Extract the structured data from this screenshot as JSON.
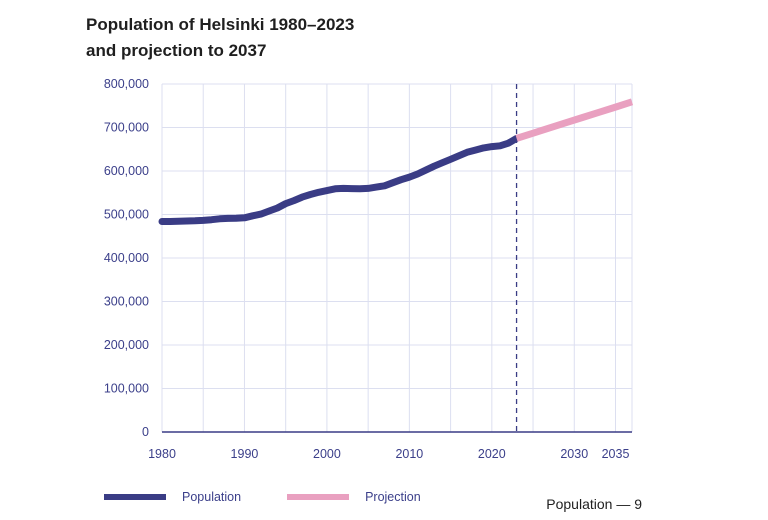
{
  "title_line1": "Population of Helsinki 1980–2023",
  "title_line2": "and projection to 2037",
  "footer": "Population — 9",
  "colors": {
    "population": "#3a3c85",
    "projection": "#e9a0c0",
    "grid": "#dcdff0",
    "axis_text": "#3b3f8a",
    "divider": "#3a3c85",
    "baseline": "#3a3c85"
  },
  "legend": [
    {
      "key": "population",
      "label": "Population"
    },
    {
      "key": "projection",
      "label": "Projection"
    }
  ],
  "chart_data": {
    "type": "line",
    "title": "Population of Helsinki 1980–2023 and projection to 2037",
    "xlabel": "",
    "ylabel": "",
    "xlim": [
      1980,
      2037
    ],
    "ylim": [
      0,
      800000
    ],
    "x_ticks": [
      1980,
      1990,
      2000,
      2010,
      2020,
      2030,
      2035
    ],
    "y_ticks": [
      {
        "value": 0,
        "label": "0"
      },
      {
        "value": 100000,
        "label": "100,000"
      },
      {
        "value": 200000,
        "label": "200,000"
      },
      {
        "value": 300000,
        "label": "300,000"
      },
      {
        "value": 400000,
        "label": "400,000"
      },
      {
        "value": 500000,
        "label": "500,000"
      },
      {
        "value": 600000,
        "label": "600,000"
      },
      {
        "value": 700000,
        "label": "700,000"
      },
      {
        "value": 800000,
        "label": "800,000"
      }
    ],
    "divider_year": 2023,
    "grid": true,
    "series": [
      {
        "name": "Population",
        "key": "population",
        "x": [
          1980,
          1981,
          1982,
          1983,
          1984,
          1985,
          1986,
          1987,
          1988,
          1989,
          1990,
          1991,
          1992,
          1993,
          1994,
          1995,
          1996,
          1997,
          1998,
          1999,
          2000,
          2001,
          2002,
          2003,
          2004,
          2005,
          2006,
          2007,
          2008,
          2009,
          2010,
          2011,
          2012,
          2013,
          2014,
          2015,
          2016,
          2017,
          2018,
          2019,
          2020,
          2021,
          2022,
          2023
        ],
        "values": [
          484000,
          484000,
          484500,
          485000,
          485500,
          486500,
          488000,
          490000,
          491000,
          491500,
          492500,
          497000,
          501000,
          508000,
          515000,
          525000,
          532000,
          540000,
          546000,
          551000,
          555000,
          559000,
          560000,
          559500,
          559000,
          560000,
          563000,
          566000,
          573000,
          580000,
          586000,
          593000,
          602000,
          611000,
          619000,
          627000,
          635000,
          643000,
          648000,
          653000,
          656000,
          658000,
          664000,
          675000
        ]
      },
      {
        "name": "Projection",
        "key": "projection",
        "x": [
          2023,
          2025,
          2027,
          2029,
          2031,
          2033,
          2035,
          2037
        ],
        "values": [
          675000,
          687000,
          699000,
          711000,
          723000,
          735000,
          747000,
          759000
        ]
      }
    ]
  }
}
